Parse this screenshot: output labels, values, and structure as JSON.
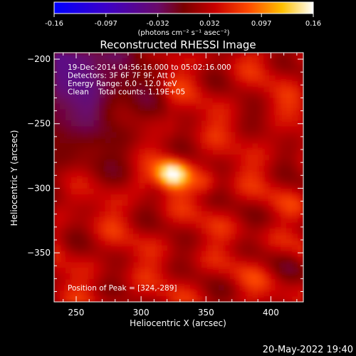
{
  "colorbar": {
    "ticks": [
      "-0.16",
      "-0.097",
      "-0.032",
      "0.032",
      "0.097",
      "0.16"
    ],
    "units": "(photons cm⁻² s⁻¹ asec⁻²)",
    "range": [
      -0.16,
      0.16
    ]
  },
  "chart_data": {
    "type": "heatmap",
    "title": "Reconstructed RHESSI Image",
    "xlabel": "Heliocentric X (arcsec)",
    "ylabel": "Heliocentric Y (arcsec)",
    "xlim": [
      233,
      425
    ],
    "ylim": [
      -388,
      -195
    ],
    "xticks": [
      250,
      300,
      350,
      400
    ],
    "yticks": [
      -200,
      -250,
      -300,
      -350
    ],
    "annotations": [
      "19-Dec-2014 04:56:16.000 to 05:02:16.000",
      "Detectors: 3F 6F 7F 9F, Att 0",
      "Energy Range: 6.0 - 12.0 keV",
      "Clean    Total counts: 1.19E+05"
    ],
    "peak_label": "Position of Peak = [324,-289]",
    "peak": {
      "x": 324,
      "y": -289,
      "value": 0.16
    },
    "secondary_sources": [
      {
        "x": 350,
        "y": -296,
        "value": 0.07
      },
      {
        "x": 300,
        "y": -296,
        "value": 0.06
      }
    ],
    "background_level": 0.035,
    "negative_region": {
      "x": [
        233,
        300
      ],
      "y": [
        -285,
        -195
      ],
      "min_value": -0.04
    },
    "grid": false
  },
  "footer": {
    "timestamp": "20-May-2022 19:40"
  }
}
